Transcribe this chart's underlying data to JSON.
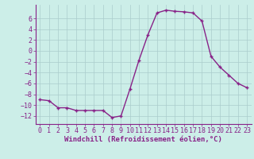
{
  "x": [
    0,
    1,
    2,
    3,
    4,
    5,
    6,
    7,
    8,
    9,
    10,
    11,
    12,
    13,
    14,
    15,
    16,
    17,
    18,
    19,
    20,
    21,
    22,
    23
  ],
  "y": [
    -9,
    -9.2,
    -10.5,
    -10.5,
    -11,
    -11,
    -11,
    -11,
    -12.3,
    -12,
    -7,
    -1.7,
    3,
    7,
    7.5,
    7.3,
    7.2,
    7,
    5.5,
    -1,
    -3,
    -4.5,
    -6,
    -6.8
  ],
  "line_color": "#882288",
  "marker": "+",
  "marker_size": 3.5,
  "marker_linewidth": 1.0,
  "line_width": 1.0,
  "bg_color": "#cceee8",
  "grid_color": "#aacccc",
  "xlabel": "Windchill (Refroidissement éolien,°C)",
  "xlabel_fontsize": 6.5,
  "tick_fontsize": 6.0,
  "ylim": [
    -13.5,
    8.5
  ],
  "xlim": [
    -0.5,
    23.5
  ],
  "yticks": [
    -12,
    -10,
    -8,
    -6,
    -4,
    -2,
    0,
    2,
    4,
    6
  ],
  "xticks": [
    0,
    1,
    2,
    3,
    4,
    5,
    6,
    7,
    8,
    9,
    10,
    11,
    12,
    13,
    14,
    15,
    16,
    17,
    18,
    19,
    20,
    21,
    22,
    23
  ]
}
